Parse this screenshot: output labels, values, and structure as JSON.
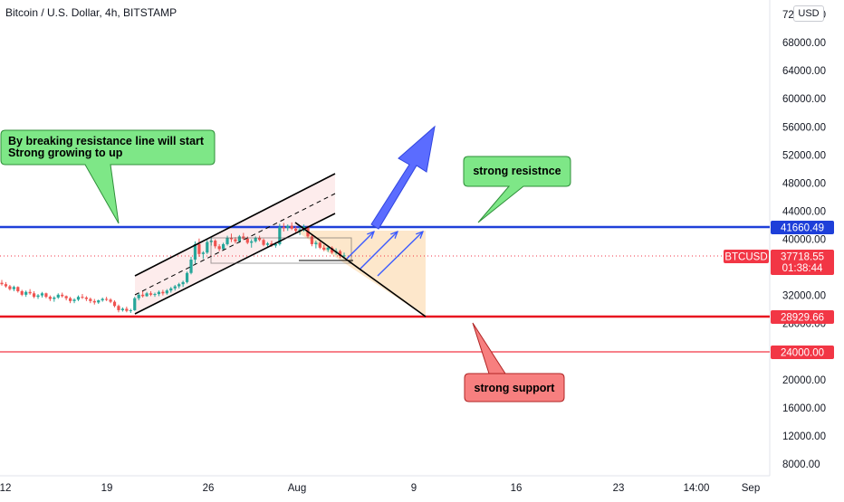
{
  "chart_data": {
    "type": "candlestick",
    "title": "Bitcoin / U.S. Dollar, 4h, BITSTAMP",
    "currency_button": "USD",
    "symbol": "BTCUSD",
    "y_ticks": [
      "72000.00",
      "68000.00",
      "64000.00",
      "60000.00",
      "56000.00",
      "52000.00",
      "48000.00",
      "44000.00",
      "40000.00",
      "36000.00",
      "32000.00",
      "28000.00",
      "24000.00",
      "20000.00",
      "16000.00",
      "12000.00",
      "8000.00"
    ],
    "x_ticks": [
      "12",
      "19",
      "26",
      "Aug",
      "9",
      "16",
      "23",
      "14:00",
      "Sep"
    ],
    "price_tags": {
      "resistance": {
        "label": "41660.49",
        "value": 41660.49,
        "color": "#1e3fd9"
      },
      "current": {
        "label": "37718.55",
        "countdown": "01:38:44",
        "value": 37718.55,
        "color": "#f23645"
      },
      "support": {
        "label": "28929.66",
        "value": 28929.66,
        "color": "#f23645"
      },
      "level": {
        "label": "24000.00",
        "value": 24000.0,
        "color": "#f23645"
      }
    },
    "annotations": {
      "green_callout": {
        "lines": [
          "By breaking resistance line will start",
          "Strong growing to up"
        ],
        "color": "#7ee787"
      },
      "resistance_callout": "strong resistnce",
      "support_callout": "strong support"
    },
    "candles": [
      [
        33800,
        34200,
        33400,
        33600
      ],
      [
        33600,
        33900,
        33100,
        33300
      ],
      [
        33300,
        33500,
        32700,
        32900
      ],
      [
        32900,
        33400,
        32600,
        33200
      ],
      [
        33200,
        33300,
        32400,
        32600
      ],
      [
        32600,
        32800,
        31900,
        32100
      ],
      [
        32100,
        32700,
        31800,
        32500
      ],
      [
        32500,
        32900,
        32100,
        32300
      ],
      [
        32300,
        32600,
        31600,
        31800
      ],
      [
        31800,
        32200,
        31500,
        32000
      ],
      [
        32000,
        32500,
        31700,
        32300
      ],
      [
        32300,
        32400,
        31600,
        31800
      ],
      [
        31800,
        32000,
        31200,
        31500
      ],
      [
        31500,
        31900,
        31100,
        31700
      ],
      [
        31700,
        32300,
        31500,
        32100
      ],
      [
        32100,
        32400,
        31700,
        31900
      ],
      [
        31900,
        32000,
        31300,
        31600
      ],
      [
        31600,
        31800,
        30900,
        31200
      ],
      [
        31200,
        31600,
        30900,
        31400
      ],
      [
        31400,
        32000,
        31200,
        31800
      ],
      [
        31800,
        32200,
        31500,
        31700
      ],
      [
        31700,
        31900,
        31200,
        31500
      ],
      [
        31500,
        31700,
        30900,
        31200
      ],
      [
        31200,
        31500,
        30700,
        31000
      ],
      [
        31000,
        31400,
        30800,
        31300
      ],
      [
        31300,
        31700,
        31100,
        31500
      ],
      [
        31500,
        31800,
        31200,
        31400
      ],
      [
        31400,
        31600,
        30900,
        31100
      ],
      [
        31100,
        31300,
        30300,
        30500
      ],
      [
        30500,
        30700,
        29600,
        29900
      ],
      [
        29900,
        30300,
        29700,
        30100
      ],
      [
        30100,
        30400,
        29600,
        29800
      ],
      [
        29800,
        30100,
        29500,
        29900
      ],
      [
        29900,
        31800,
        29800,
        31600
      ],
      [
        31600,
        32400,
        31300,
        32100
      ],
      [
        32100,
        32600,
        31700,
        31900
      ],
      [
        31900,
        32500,
        31800,
        32300
      ],
      [
        32300,
        32600,
        31900,
        32100
      ],
      [
        32100,
        32400,
        31800,
        32200
      ],
      [
        32200,
        32700,
        31900,
        32500
      ],
      [
        32500,
        32800,
        32000,
        32300
      ],
      [
        32300,
        32900,
        32100,
        32700
      ],
      [
        32700,
        33200,
        32400,
        33000
      ],
      [
        33000,
        33500,
        32700,
        33300
      ],
      [
        33300,
        33800,
        33000,
        33600
      ],
      [
        33600,
        34100,
        33200,
        33900
      ],
      [
        33900,
        35400,
        33700,
        35200
      ],
      [
        35200,
        37500,
        35000,
        37100
      ],
      [
        37100,
        39700,
        36500,
        39300
      ],
      [
        39300,
        40100,
        37500,
        37900
      ],
      [
        37900,
        38300,
        37200,
        38100
      ],
      [
        38100,
        39900,
        37900,
        39600
      ],
      [
        39600,
        40300,
        39100,
        39800
      ],
      [
        39800,
        40000,
        38700,
        39000
      ],
      [
        39000,
        39300,
        38300,
        38600
      ],
      [
        38600,
        39500,
        38400,
        39300
      ],
      [
        39300,
        40500,
        39100,
        40200
      ],
      [
        40200,
        40800,
        39600,
        40000
      ],
      [
        40000,
        40300,
        39400,
        39700
      ],
      [
        39700,
        40600,
        39500,
        40400
      ],
      [
        40400,
        40900,
        39900,
        40100
      ],
      [
        40100,
        40400,
        39300,
        39500
      ],
      [
        39500,
        40000,
        38800,
        39700
      ],
      [
        39700,
        40400,
        39500,
        40200
      ],
      [
        40200,
        40500,
        39700,
        39900
      ],
      [
        39900,
        40100,
        39000,
        39200
      ],
      [
        39200,
        39600,
        38900,
        39400
      ],
      [
        39400,
        39800,
        38900,
        39100
      ],
      [
        39100,
        39600,
        38800,
        39300
      ],
      [
        39300,
        42200,
        39100,
        41700
      ],
      [
        41700,
        42300,
        41100,
        41600
      ],
      [
        41600,
        42100,
        41200,
        41900
      ],
      [
        41900,
        42400,
        41300,
        41500
      ],
      [
        41500,
        41800,
        40900,
        41200
      ],
      [
        41200,
        41700,
        40600,
        41400
      ],
      [
        41400,
        42100,
        41100,
        41800
      ],
      [
        41800,
        41900,
        40200,
        40400
      ],
      [
        40400,
        40700,
        39000,
        39300
      ],
      [
        39300,
        39800,
        38700,
        39500
      ],
      [
        39500,
        39700,
        38600,
        38800
      ],
      [
        38800,
        39200,
        38300,
        38500
      ],
      [
        38500,
        39100,
        38200,
        38800
      ],
      [
        38800,
        39000,
        37900,
        38100
      ],
      [
        38100,
        38700,
        37800,
        38300
      ],
      [
        38300,
        38500,
        37300,
        37600
      ],
      [
        37600,
        38100,
        37200,
        37700
      ]
    ]
  }
}
